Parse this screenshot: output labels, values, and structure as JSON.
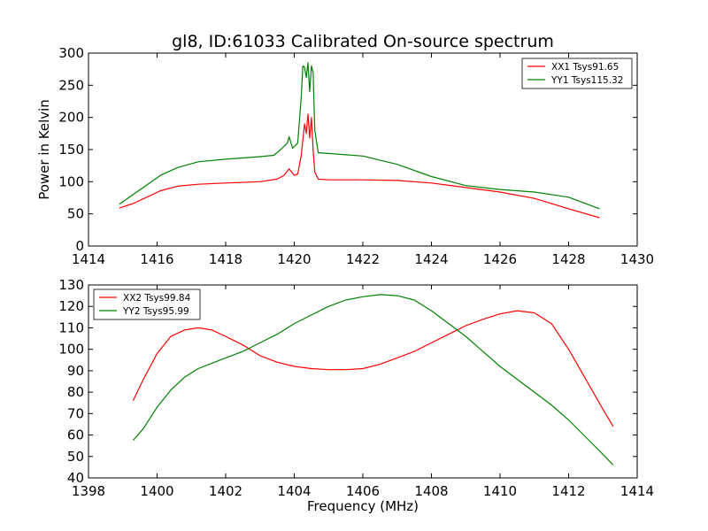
{
  "title": "gl8, ID:61033 Calibrated On-source spectrum",
  "xlabel": "Frequency (MHz)",
  "colors": {
    "red": "#ff0000",
    "green": "#008000"
  },
  "chart_data": [
    {
      "type": "line",
      "ylabel": "Power in Kelvin",
      "xlim": [
        1414,
        1430
      ],
      "ylim": [
        0,
        300
      ],
      "xticks": [
        1414,
        1416,
        1418,
        1420,
        1422,
        1424,
        1426,
        1428,
        1430
      ],
      "yticks": [
        0,
        50,
        100,
        150,
        200,
        250,
        300
      ],
      "legend": "top-right",
      "grid": false,
      "series": [
        {
          "name": "XX1 Tsys91.65",
          "color": "#ff0000",
          "x": [
            1414.9,
            1415.3,
            1415.7,
            1416.1,
            1416.6,
            1417.2,
            1418.0,
            1419.0,
            1419.5,
            1419.7,
            1419.85,
            1420.0,
            1420.1,
            1420.2,
            1420.3,
            1420.35,
            1420.4,
            1420.45,
            1420.5,
            1420.55,
            1420.6,
            1420.7,
            1421.0,
            1422.0,
            1423.0,
            1424.0,
            1425.0,
            1426.0,
            1427.0,
            1428.0,
            1428.9
          ],
          "y": [
            59,
            66,
            76,
            86,
            93,
            96,
            98,
            100,
            104,
            110,
            120,
            110,
            112,
            140,
            190,
            175,
            205,
            168,
            200,
            150,
            115,
            104,
            103,
            103,
            102,
            98,
            91,
            84,
            74,
            58,
            44
          ]
        },
        {
          "name": "YY1 Tsys115.32",
          "color": "#008000",
          "x": [
            1414.9,
            1415.3,
            1415.7,
            1416.1,
            1416.6,
            1417.2,
            1418.0,
            1419.0,
            1419.4,
            1419.6,
            1419.8,
            1419.85,
            1419.95,
            1420.1,
            1420.2,
            1420.25,
            1420.3,
            1420.35,
            1420.4,
            1420.45,
            1420.5,
            1420.55,
            1420.6,
            1420.7,
            1421.0,
            1422.0,
            1423.0,
            1424.0,
            1425.0,
            1426.0,
            1427.0,
            1428.0,
            1428.9
          ],
          "y": [
            65,
            80,
            95,
            110,
            122,
            131,
            135,
            139,
            141,
            150,
            160,
            170,
            152,
            160,
            230,
            280,
            278,
            262,
            285,
            240,
            280,
            270,
            180,
            145,
            144,
            140,
            127,
            108,
            94,
            88,
            84,
            76,
            58
          ]
        }
      ]
    },
    {
      "type": "line",
      "ylabel": "",
      "xlim": [
        1398,
        1414
      ],
      "ylim": [
        40,
        130
      ],
      "xticks": [
        1398,
        1400,
        1402,
        1404,
        1406,
        1408,
        1410,
        1412,
        1414
      ],
      "yticks": [
        40,
        50,
        60,
        70,
        80,
        90,
        100,
        110,
        120,
        130
      ],
      "legend": "top-left",
      "grid": false,
      "series": [
        {
          "name": "XX2 Tsys99.84",
          "color": "#ff0000",
          "x": [
            1399.3,
            1399.6,
            1400.0,
            1400.4,
            1400.8,
            1401.2,
            1401.6,
            1402.0,
            1402.5,
            1403.0,
            1403.5,
            1404.0,
            1404.5,
            1405.0,
            1405.5,
            1406.0,
            1406.5,
            1407.0,
            1407.5,
            1408.0,
            1408.5,
            1409.0,
            1409.5,
            1410.0,
            1410.5,
            1411.0,
            1411.5,
            1412.0,
            1412.5,
            1413.0,
            1413.3
          ],
          "y": [
            76,
            86,
            98,
            106,
            109,
            110,
            109,
            106,
            102,
            97,
            94,
            92,
            91,
            90.5,
            90.5,
            91,
            93,
            96,
            99,
            103,
            107,
            111,
            114,
            116.5,
            118,
            117,
            112,
            100,
            86,
            72,
            64
          ]
        },
        {
          "name": "YY2 Tsys95.99",
          "color": "#008000",
          "x": [
            1399.3,
            1399.6,
            1400.0,
            1400.4,
            1400.8,
            1401.2,
            1401.6,
            1402.0,
            1402.5,
            1403.0,
            1403.5,
            1404.0,
            1404.5,
            1405.0,
            1405.5,
            1406.0,
            1406.5,
            1407.0,
            1407.5,
            1408.0,
            1408.5,
            1409.0,
            1409.5,
            1410.0,
            1410.5,
            1411.0,
            1411.5,
            1412.0,
            1412.5,
            1413.0,
            1413.3
          ],
          "y": [
            57.5,
            63,
            73,
            81,
            87,
            91,
            93.5,
            96,
            99,
            103,
            107,
            112,
            116,
            120,
            123,
            124.5,
            125.5,
            125,
            123,
            118,
            112,
            106,
            99,
            92,
            86,
            80,
            74,
            67,
            59,
            51,
            46
          ]
        }
      ]
    }
  ]
}
